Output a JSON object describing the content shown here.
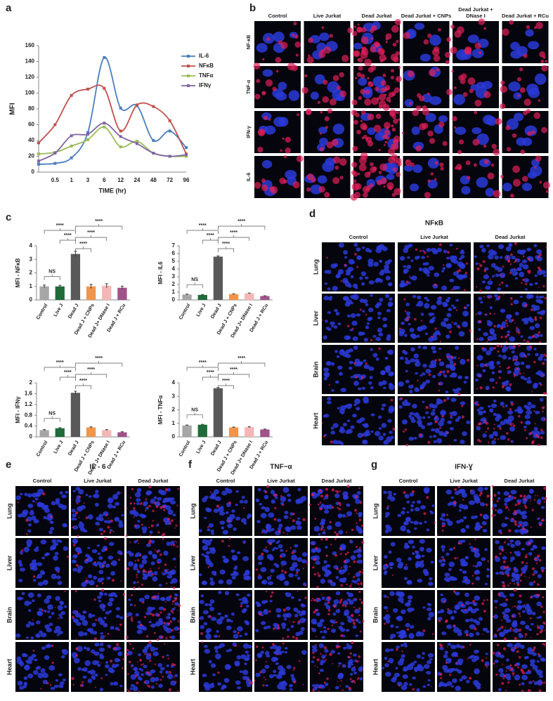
{
  "chart_data": [
    {
      "type": "line",
      "panel_label": "a",
      "x_label": "TIME (hr)",
      "y_label": "MFI",
      "categories": [
        null,
        "0.5",
        "1",
        "3",
        "6",
        "12",
        "24",
        "48",
        "72",
        "96"
      ],
      "ylim": [
        0,
        160
      ],
      "yticks": [
        0,
        20,
        40,
        60,
        80,
        100,
        120,
        140,
        160
      ],
      "series": [
        {
          "name": "IL-6",
          "color": "#4a7ebb",
          "values": [
            10,
            11,
            18,
            50,
            145,
            81,
            84,
            40,
            52,
            31
          ]
        },
        {
          "name": "NFκB",
          "color": "#c0504d",
          "values": [
            37,
            60,
            97,
            105,
            106,
            52,
            85,
            83,
            65,
            23
          ]
        },
        {
          "name": "TNFα",
          "color": "#9bbb59",
          "values": [
            23,
            25,
            33,
            41,
            57,
            32,
            39,
            24,
            20,
            20
          ]
        },
        {
          "name": "IFNγ",
          "color": "#8064a2",
          "values": [
            14,
            24,
            46,
            48,
            62,
            45,
            36,
            24,
            20,
            22
          ]
        }
      ]
    },
    {
      "type": "bar",
      "panel_label": "c",
      "y_label": "MFI - NFκB",
      "categories": [
        "Control",
        "Live J",
        "Dead J",
        "Dead J + CNPs",
        "Dead J+ DNase I",
        "Dead J + RCu"
      ],
      "colors": [
        "#a6a6a6",
        "#1f6b3a",
        "#595959",
        "#f0954a",
        "#f4b6b6",
        "#a0528a"
      ],
      "values": [
        1.0,
        1.0,
        3.4,
        1.0,
        1.05,
        0.9
      ],
      "errors": [
        0.1,
        0.08,
        0.2,
        0.15,
        0.15,
        0.12
      ],
      "ylim": [
        0,
        4
      ],
      "yticks": [
        0,
        1,
        2,
        3,
        4
      ],
      "annotations": [
        "NS",
        "****",
        "****",
        "****",
        "****",
        "****"
      ]
    },
    {
      "type": "bar",
      "y_label": "MFI - IL6",
      "categories": [
        "Control",
        "Live J",
        "Dead J",
        "Dead J + CNPs",
        "Dead J+ DNase I",
        "Dead J + RCu"
      ],
      "colors": [
        "#a6a6a6",
        "#1f6b3a",
        "#595959",
        "#f0954a",
        "#f4b6b6",
        "#a0528a"
      ],
      "values": [
        0.7,
        0.65,
        5.6,
        0.75,
        0.85,
        0.5
      ],
      "errors": [
        0.05,
        0.05,
        0.1,
        0.04,
        0.04,
        0.04
      ],
      "ylim": [
        0,
        7
      ],
      "yticks": [
        0,
        1,
        2,
        3,
        4,
        5,
        6,
        7
      ],
      "annotations": [
        "NS",
        "****",
        "****",
        "****",
        "****",
        "****"
      ]
    },
    {
      "type": "bar",
      "y_label": "MFI - IFNγ",
      "categories": [
        "Control",
        "Live J",
        "Dead J",
        "Dead J + CNPs",
        "Dead J+ DNase I",
        "Dead J + RCu"
      ],
      "colors": [
        "#a6a6a6",
        "#1f6b3a",
        "#595959",
        "#f0954a",
        "#f4b6b6",
        "#a0528a"
      ],
      "values": [
        0.25,
        0.32,
        1.63,
        0.35,
        0.25,
        0.17
      ],
      "errors": [
        0.02,
        0.02,
        0.06,
        0.02,
        0.02,
        0.02
      ],
      "ylim": [
        0,
        2
      ],
      "yticks": [
        0,
        {
          "value": 0.4,
          "label": "0.4"
        },
        {
          "value": 0.8,
          "label": "0.8"
        },
        {
          "value": 1.2,
          "label": "1.2"
        },
        {
          "value": 1.6,
          "label": "1.6"
        },
        2
      ],
      "annotations": [
        "NS",
        "****",
        "****",
        "****",
        "****",
        "****"
      ]
    },
    {
      "type": "bar",
      "y_label": "MFI - TNFα",
      "categories": [
        "Control",
        "Live J",
        "Dead J",
        "Dead J + CNPs",
        "Dead J+ DNase I",
        "Dead J + RCu"
      ],
      "colors": [
        "#a6a6a6",
        "#1f6b3a",
        "#595959",
        "#f0954a",
        "#f4b6b6",
        "#a0528a"
      ],
      "values": [
        0.85,
        0.9,
        3.6,
        0.7,
        0.72,
        0.55
      ],
      "errors": [
        0.03,
        0.03,
        0.05,
        0.03,
        0.03,
        0.03
      ],
      "ylim": [
        0,
        4
      ],
      "yticks": [
        0,
        1,
        2,
        3,
        4
      ],
      "annotations": [
        "NS",
        "****",
        "****",
        "****",
        "****",
        "****"
      ]
    }
  ],
  "image_panels": [
    {
      "label": "b",
      "columns": [
        "Control",
        "Live Jurkat",
        "Dead Jurkat",
        "Dead Jurkat + CNPs",
        "Dead Jurkat + DNase I",
        "Dead Jurkat + RCu"
      ],
      "rows": [
        "NF-κB",
        "TNF-α",
        "IFN-γ",
        "IL-6"
      ]
    },
    {
      "label": "d",
      "title": "NFκB",
      "columns": [
        "Control",
        "Live Jurkat",
        "Dead Jurkat"
      ],
      "rows": [
        "Lung",
        "Liver",
        "Brain",
        "Heart"
      ]
    },
    {
      "label": "e",
      "title": "IL - 6",
      "columns": [
        "Control",
        "Live Jurkat",
        "Dead Jurkat"
      ],
      "rows": [
        "Lung",
        "Liver",
        "Brain",
        "Heart"
      ]
    },
    {
      "label": "f",
      "title": "TNF−α",
      "columns": [
        "Control",
        "Live Jurkat",
        "Dead Jurkat"
      ],
      "rows": [
        "Lung",
        "Liver",
        "Brain",
        "Heart"
      ]
    },
    {
      "label": "g",
      "title": "IFN-Ɣ",
      "columns": [
        "Control",
        "Live Jurkat",
        "Dead Jurkat"
      ],
      "rows": [
        "Lung",
        "Liver",
        "Brain",
        "Heart"
      ]
    }
  ]
}
